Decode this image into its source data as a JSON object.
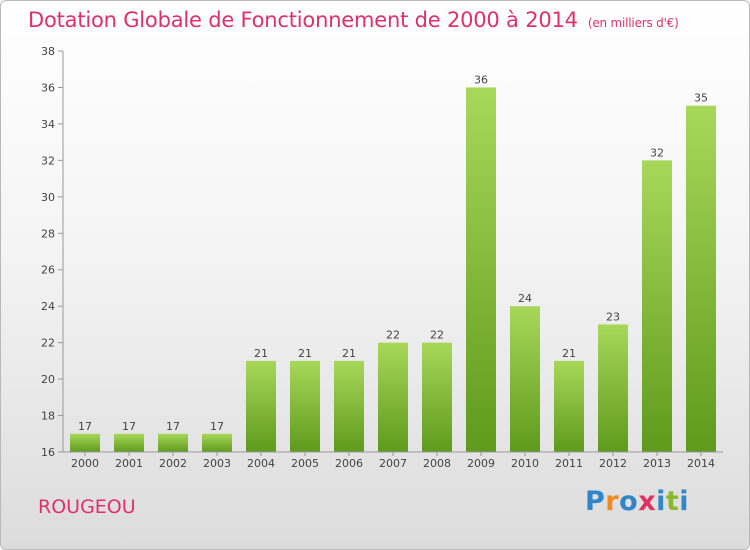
{
  "title": "Dotation Globale de Fonctionnement de 2000 à 2014",
  "unit": "(en milliers d'€)",
  "commune": "ROUGEOU",
  "logo": {
    "text": "Proxiti",
    "letters": [
      "P",
      "r",
      "o",
      "x",
      "i",
      "t",
      "i"
    ],
    "colors": [
      "#2f86c8",
      "#f08a1c",
      "#2f86c8",
      "#e0306a",
      "#2f86c8",
      "#8ab92e",
      "#2f86c8"
    ]
  },
  "colors": {
    "accent": "#e0306a",
    "bar_light": "#a8d85a",
    "bar_dark": "#5f9a1c"
  },
  "chart_data": {
    "type": "bar",
    "categories": [
      "2000",
      "2001",
      "2002",
      "2003",
      "2004",
      "2005",
      "2006",
      "2007",
      "2008",
      "2009",
      "2010",
      "2011",
      "2012",
      "2013",
      "2014"
    ],
    "values": [
      17,
      17,
      17,
      17,
      21,
      21,
      21,
      22,
      22,
      36,
      24,
      21,
      23,
      32,
      35
    ],
    "data_labels": [
      "17",
      "17",
      "17",
      "17",
      "21",
      "21",
      "21",
      "22",
      "22",
      "36",
      "24",
      "21",
      "23",
      "32",
      "35"
    ],
    "ylim": [
      16,
      38
    ],
    "yticks": [
      16,
      18,
      20,
      22,
      24,
      26,
      28,
      30,
      32,
      34,
      36,
      38
    ],
    "xlabel": "",
    "ylabel": "",
    "grid": false,
    "legend": "none"
  }
}
